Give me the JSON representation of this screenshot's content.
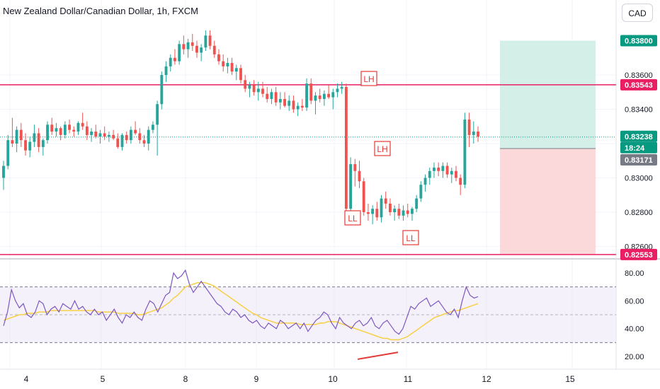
{
  "header": {
    "title": "New Zealand Dollar/Canadian Dollar, 1h, FXCM",
    "currency_button": "CAD"
  },
  "colors": {
    "up": "#26a69a",
    "down": "#ef5350",
    "level_line": "#e91e63",
    "rsi_line": "#7e57c2",
    "rsi_ma": "#f7d046",
    "profit_zone": "#d4efe8",
    "loss_zone": "#fbd9db",
    "annotation": "#e53935"
  },
  "chart_data": [
    {
      "type": "candlestick",
      "symbol": "NZDCAD",
      "timeframe": "1h",
      "source": "FXCM",
      "x_tick_labels": [
        "4",
        "5",
        "8",
        "9",
        "10",
        "11",
        "12",
        "15"
      ],
      "price_axis_labels": [
        "0.83600",
        "0.83400",
        "0.83000",
        "0.82800",
        "0.82600"
      ],
      "ylim": [
        0.8255,
        0.8385
      ],
      "price_tags": [
        {
          "value": "0.83800",
          "role": "take-profit",
          "color": "#089981"
        },
        {
          "value": "0.83543",
          "role": "resistance",
          "color": "#e91e63"
        },
        {
          "value": "0.83238",
          "role": "last-price",
          "color": "#089981"
        },
        {
          "value": "18:24",
          "role": "countdown",
          "color": "#089981"
        },
        {
          "value": "0.83171",
          "role": "entry",
          "color": "#787b86"
        },
        {
          "value": "0.82553",
          "role": "stop-loss-support",
          "color": "#e91e63"
        }
      ],
      "horizontal_levels": [
        0.83543,
        0.82553
      ],
      "annotations": [
        {
          "text": "LH",
          "price": 0.83578
        },
        {
          "text": "LH",
          "price": 0.83165
        },
        {
          "text": "LL",
          "price": 0.8271
        },
        {
          "text": "LL",
          "price": 0.82635
        }
      ],
      "position": {
        "entry": 0.83171,
        "take_profit": 0.838,
        "stop_loss": 0.82553
      },
      "candles": [
        [
          0.83,
          0.831,
          0.8293,
          0.8307
        ],
        [
          0.8307,
          0.8325,
          0.8305,
          0.8322
        ],
        [
          0.8322,
          0.8335,
          0.8318,
          0.832
        ],
        [
          0.832,
          0.833,
          0.8315,
          0.8328
        ],
        [
          0.8328,
          0.8332,
          0.8318,
          0.8322
        ],
        [
          0.8322,
          0.8326,
          0.8313,
          0.8316
        ],
        [
          0.8316,
          0.8324,
          0.8312,
          0.8321
        ],
        [
          0.8321,
          0.8331,
          0.8318,
          0.8326
        ],
        [
          0.8326,
          0.8329,
          0.8315,
          0.8318
        ],
        [
          0.8318,
          0.8323,
          0.8313,
          0.8322
        ],
        [
          0.8322,
          0.8333,
          0.832,
          0.8331
        ],
        [
          0.8331,
          0.8335,
          0.8325,
          0.8327
        ],
        [
          0.8327,
          0.8332,
          0.8324,
          0.8329
        ],
        [
          0.8329,
          0.833,
          0.8322,
          0.8325
        ],
        [
          0.8325,
          0.8333,
          0.8323,
          0.8331
        ],
        [
          0.8331,
          0.8334,
          0.8326,
          0.8328
        ],
        [
          0.8328,
          0.833,
          0.8324,
          0.8327
        ],
        [
          0.8327,
          0.8333,
          0.8325,
          0.8332
        ],
        [
          0.8332,
          0.8338,
          0.8328,
          0.833
        ],
        [
          0.833,
          0.8333,
          0.8322,
          0.8325
        ],
        [
          0.8325,
          0.8329,
          0.8321,
          0.8327
        ],
        [
          0.8327,
          0.8331,
          0.8323,
          0.8324
        ],
        [
          0.8324,
          0.8328,
          0.832,
          0.8326
        ],
        [
          0.8326,
          0.833,
          0.8322,
          0.8324
        ],
        [
          0.8324,
          0.8327,
          0.8321,
          0.8325
        ],
        [
          0.8325,
          0.8328,
          0.8322,
          0.8323
        ],
        [
          0.8323,
          0.8326,
          0.8317,
          0.8318
        ],
        [
          0.8318,
          0.8326,
          0.8316,
          0.8325
        ],
        [
          0.8325,
          0.8327,
          0.832,
          0.8322
        ],
        [
          0.8322,
          0.833,
          0.832,
          0.8328
        ],
        [
          0.8328,
          0.8333,
          0.8325,
          0.8326
        ],
        [
          0.8326,
          0.8329,
          0.832,
          0.8322
        ],
        [
          0.8322,
          0.8325,
          0.8318,
          0.832
        ],
        [
          0.832,
          0.833,
          0.8316,
          0.8328
        ],
        [
          0.8328,
          0.8333,
          0.8326,
          0.8331
        ],
        [
          0.8331,
          0.8345,
          0.8313,
          0.8343
        ],
        [
          0.8343,
          0.8362,
          0.834,
          0.836
        ],
        [
          0.836,
          0.8368,
          0.8356,
          0.8365
        ],
        [
          0.8365,
          0.8372,
          0.8362,
          0.837
        ],
        [
          0.837,
          0.8375,
          0.8366,
          0.8368
        ],
        [
          0.8368,
          0.838,
          0.8366,
          0.8378
        ],
        [
          0.8378,
          0.8383,
          0.8372,
          0.8375
        ],
        [
          0.8375,
          0.8381,
          0.837,
          0.8379
        ],
        [
          0.8379,
          0.8384,
          0.8374,
          0.8377
        ],
        [
          0.8377,
          0.838,
          0.837,
          0.8373
        ],
        [
          0.8373,
          0.8378,
          0.8368,
          0.8376
        ],
        [
          0.8376,
          0.8386,
          0.8374,
          0.8383
        ],
        [
          0.8383,
          0.8386,
          0.8375,
          0.8377
        ],
        [
          0.8377,
          0.838,
          0.837,
          0.8372
        ],
        [
          0.8372,
          0.8375,
          0.8366,
          0.8368
        ],
        [
          0.8368,
          0.8372,
          0.8362,
          0.8365
        ],
        [
          0.8365,
          0.837,
          0.8361,
          0.8367
        ],
        [
          0.8367,
          0.837,
          0.836,
          0.8362
        ],
        [
          0.8362,
          0.8366,
          0.8357,
          0.8364
        ],
        [
          0.8364,
          0.8366,
          0.8355,
          0.8357
        ],
        [
          0.8357,
          0.836,
          0.835,
          0.8352
        ],
        [
          0.8352,
          0.8356,
          0.8347,
          0.8354
        ],
        [
          0.8354,
          0.8357,
          0.8348,
          0.835
        ],
        [
          0.835,
          0.8356,
          0.8345,
          0.8352
        ],
        [
          0.8352,
          0.8356,
          0.8347,
          0.8349
        ],
        [
          0.8349,
          0.8353,
          0.8344,
          0.8346
        ],
        [
          0.8346,
          0.8352,
          0.8343,
          0.835
        ],
        [
          0.835,
          0.8353,
          0.8342,
          0.8344
        ],
        [
          0.8344,
          0.835,
          0.834,
          0.8346
        ],
        [
          0.8346,
          0.835,
          0.8341,
          0.8342
        ],
        [
          0.8342,
          0.8348,
          0.8339,
          0.8345
        ],
        [
          0.8345,
          0.8348,
          0.8338,
          0.834
        ],
        [
          0.834,
          0.8344,
          0.8336,
          0.8342
        ],
        [
          0.8342,
          0.8346,
          0.8339,
          0.8341
        ],
        [
          0.8341,
          0.8358,
          0.8339,
          0.8355
        ],
        [
          0.8355,
          0.8358,
          0.8343,
          0.8345
        ],
        [
          0.8345,
          0.835,
          0.8337,
          0.8348
        ],
        [
          0.8348,
          0.8352,
          0.8344,
          0.8346
        ],
        [
          0.8346,
          0.8351,
          0.8342,
          0.8349
        ],
        [
          0.8349,
          0.8354,
          0.8346,
          0.8347
        ],
        [
          0.8347,
          0.8352,
          0.834,
          0.835
        ],
        [
          0.835,
          0.8355,
          0.8347,
          0.8352
        ],
        [
          0.8352,
          0.8356,
          0.8349,
          0.8353
        ],
        [
          0.8353,
          0.8355,
          0.8278,
          0.8282
        ],
        [
          0.8282,
          0.8312,
          0.828,
          0.8308
        ],
        [
          0.8308,
          0.8311,
          0.8295,
          0.8304
        ],
        [
          0.8304,
          0.831,
          0.8294,
          0.8298
        ],
        [
          0.8298,
          0.83,
          0.8278,
          0.828
        ],
        [
          0.828,
          0.8285,
          0.8275,
          0.8279
        ],
        [
          0.8279,
          0.8284,
          0.8273,
          0.8282
        ],
        [
          0.8282,
          0.8286,
          0.8275,
          0.8277
        ],
        [
          0.8277,
          0.829,
          0.8274,
          0.8288
        ],
        [
          0.8288,
          0.8292,
          0.8282,
          0.8285
        ],
        [
          0.8285,
          0.8288,
          0.8278,
          0.828
        ],
        [
          0.828,
          0.8284,
          0.8275,
          0.8282
        ],
        [
          0.8282,
          0.8285,
          0.8276,
          0.8278
        ],
        [
          0.8278,
          0.8284,
          0.8275,
          0.8281
        ],
        [
          0.8281,
          0.8285,
          0.8277,
          0.8279
        ],
        [
          0.8279,
          0.8283,
          0.8275,
          0.8282
        ],
        [
          0.8282,
          0.829,
          0.828,
          0.8288
        ],
        [
          0.8288,
          0.8298,
          0.8286,
          0.8296
        ],
        [
          0.8296,
          0.8302,
          0.8292,
          0.83
        ],
        [
          0.83,
          0.8306,
          0.8296,
          0.8304
        ],
        [
          0.8304,
          0.8309,
          0.83,
          0.8306
        ],
        [
          0.8306,
          0.8309,
          0.8301,
          0.8304
        ],
        [
          0.8304,
          0.8309,
          0.83,
          0.8307
        ],
        [
          0.8307,
          0.8309,
          0.83,
          0.8302
        ],
        [
          0.8302,
          0.8306,
          0.8297,
          0.8304
        ],
        [
          0.8304,
          0.8307,
          0.8298,
          0.83
        ],
        [
          0.83,
          0.8302,
          0.829,
          0.8296
        ],
        [
          0.8296,
          0.8338,
          0.8294,
          0.8334
        ],
        [
          0.8334,
          0.8338,
          0.8318,
          0.8325
        ],
        [
          0.8325,
          0.8333,
          0.832,
          0.8327
        ],
        [
          0.8327,
          0.833,
          0.8321,
          0.8324
        ]
      ]
    },
    {
      "type": "line",
      "indicator": "RSI",
      "y_tick_labels": [
        "80.00",
        "60.00",
        "40.00",
        "20.00"
      ],
      "ylim": [
        15,
        85
      ],
      "band": [
        30,
        70
      ],
      "midline": 50,
      "series": [
        {
          "values": [
            42,
            52,
            68,
            60,
            55,
            58,
            50,
            48,
            52,
            60,
            58,
            50,
            54,
            56,
            52,
            58,
            56,
            54,
            60,
            54,
            56,
            52,
            50,
            54,
            50,
            52,
            46,
            50,
            54,
            48,
            44,
            50,
            48,
            52,
            48,
            46,
            54,
            60,
            58,
            52,
            58,
            64,
            66,
            80,
            76,
            78,
            82,
            72,
            66,
            70,
            74,
            70,
            66,
            62,
            58,
            56,
            52,
            50,
            54,
            52,
            48,
            50,
            46,
            44,
            46,
            42,
            40,
            44,
            42,
            40,
            46,
            44,
            40,
            42,
            44,
            40,
            44,
            38,
            42,
            46,
            48,
            52,
            50,
            44,
            40,
            48,
            44,
            42,
            40,
            44,
            46,
            42,
            44,
            48,
            42,
            40,
            44,
            46,
            42,
            38,
            36,
            40,
            48,
            56,
            54,
            58,
            60,
            62,
            56,
            58,
            60,
            56,
            52,
            50,
            54,
            48,
            60,
            70,
            64,
            62,
            63
          ]
        },
        {
          "values": [
            46,
            47,
            48,
            49,
            50,
            50,
            51,
            51,
            51,
            52,
            52,
            52,
            53,
            53,
            53,
            53,
            53,
            53,
            53,
            53,
            53,
            53,
            53,
            53,
            52,
            52,
            52,
            52,
            52,
            51,
            51,
            51,
            51,
            51,
            50,
            50,
            51,
            52,
            53,
            54,
            55,
            57,
            59,
            62,
            64,
            67,
            70,
            71,
            72,
            73,
            73,
            73,
            72,
            71,
            69,
            67,
            65,
            63,
            61,
            59,
            57,
            55,
            53,
            51,
            50,
            48,
            47,
            46,
            45,
            44,
            44,
            44,
            44,
            44,
            44,
            43,
            43,
            43,
            43,
            43,
            44,
            44,
            45,
            45,
            45,
            44,
            43,
            42,
            41,
            40,
            39,
            38,
            37,
            36,
            35,
            34,
            33,
            33,
            32,
            32,
            32,
            33,
            34,
            36,
            38,
            40,
            42,
            44,
            46,
            48,
            49,
            50,
            51,
            52,
            53,
            53,
            54,
            55,
            56,
            57,
            58
          ]
        }
      ]
    }
  ],
  "divergence_line": {
    "from": 18,
    "to": 23
  }
}
